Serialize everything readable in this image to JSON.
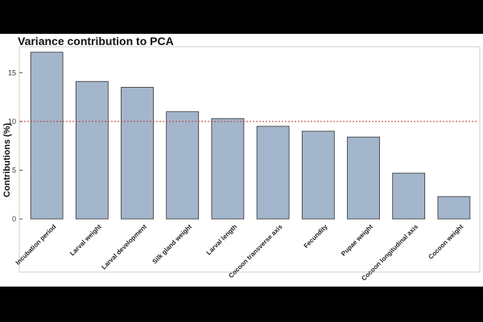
{
  "chart_data": {
    "type": "bar",
    "title": "Variance contribution to PCA",
    "xlabel": "",
    "ylabel": "Contributions (%)",
    "ylim": [
      0,
      17.5
    ],
    "yticks": [
      0,
      5,
      10,
      15
    ],
    "reference_line": 10,
    "grid": false,
    "categories": [
      "Incubation period",
      "Larval weight",
      "Larval development",
      "Silk gland weight",
      "Larval length",
      "Cocoon transverse axis",
      "Fecundity",
      "Pupae weight",
      "Cocoon longitudinal axis",
      "Cocoon weight"
    ],
    "values": [
      17.1,
      14.1,
      13.5,
      11.0,
      10.3,
      9.5,
      9.0,
      8.4,
      4.7,
      2.3
    ],
    "colors": {
      "bar_fill": "#a3b6cc",
      "bar_stroke": "#333333",
      "reference_line": "#c0392b"
    }
  }
}
